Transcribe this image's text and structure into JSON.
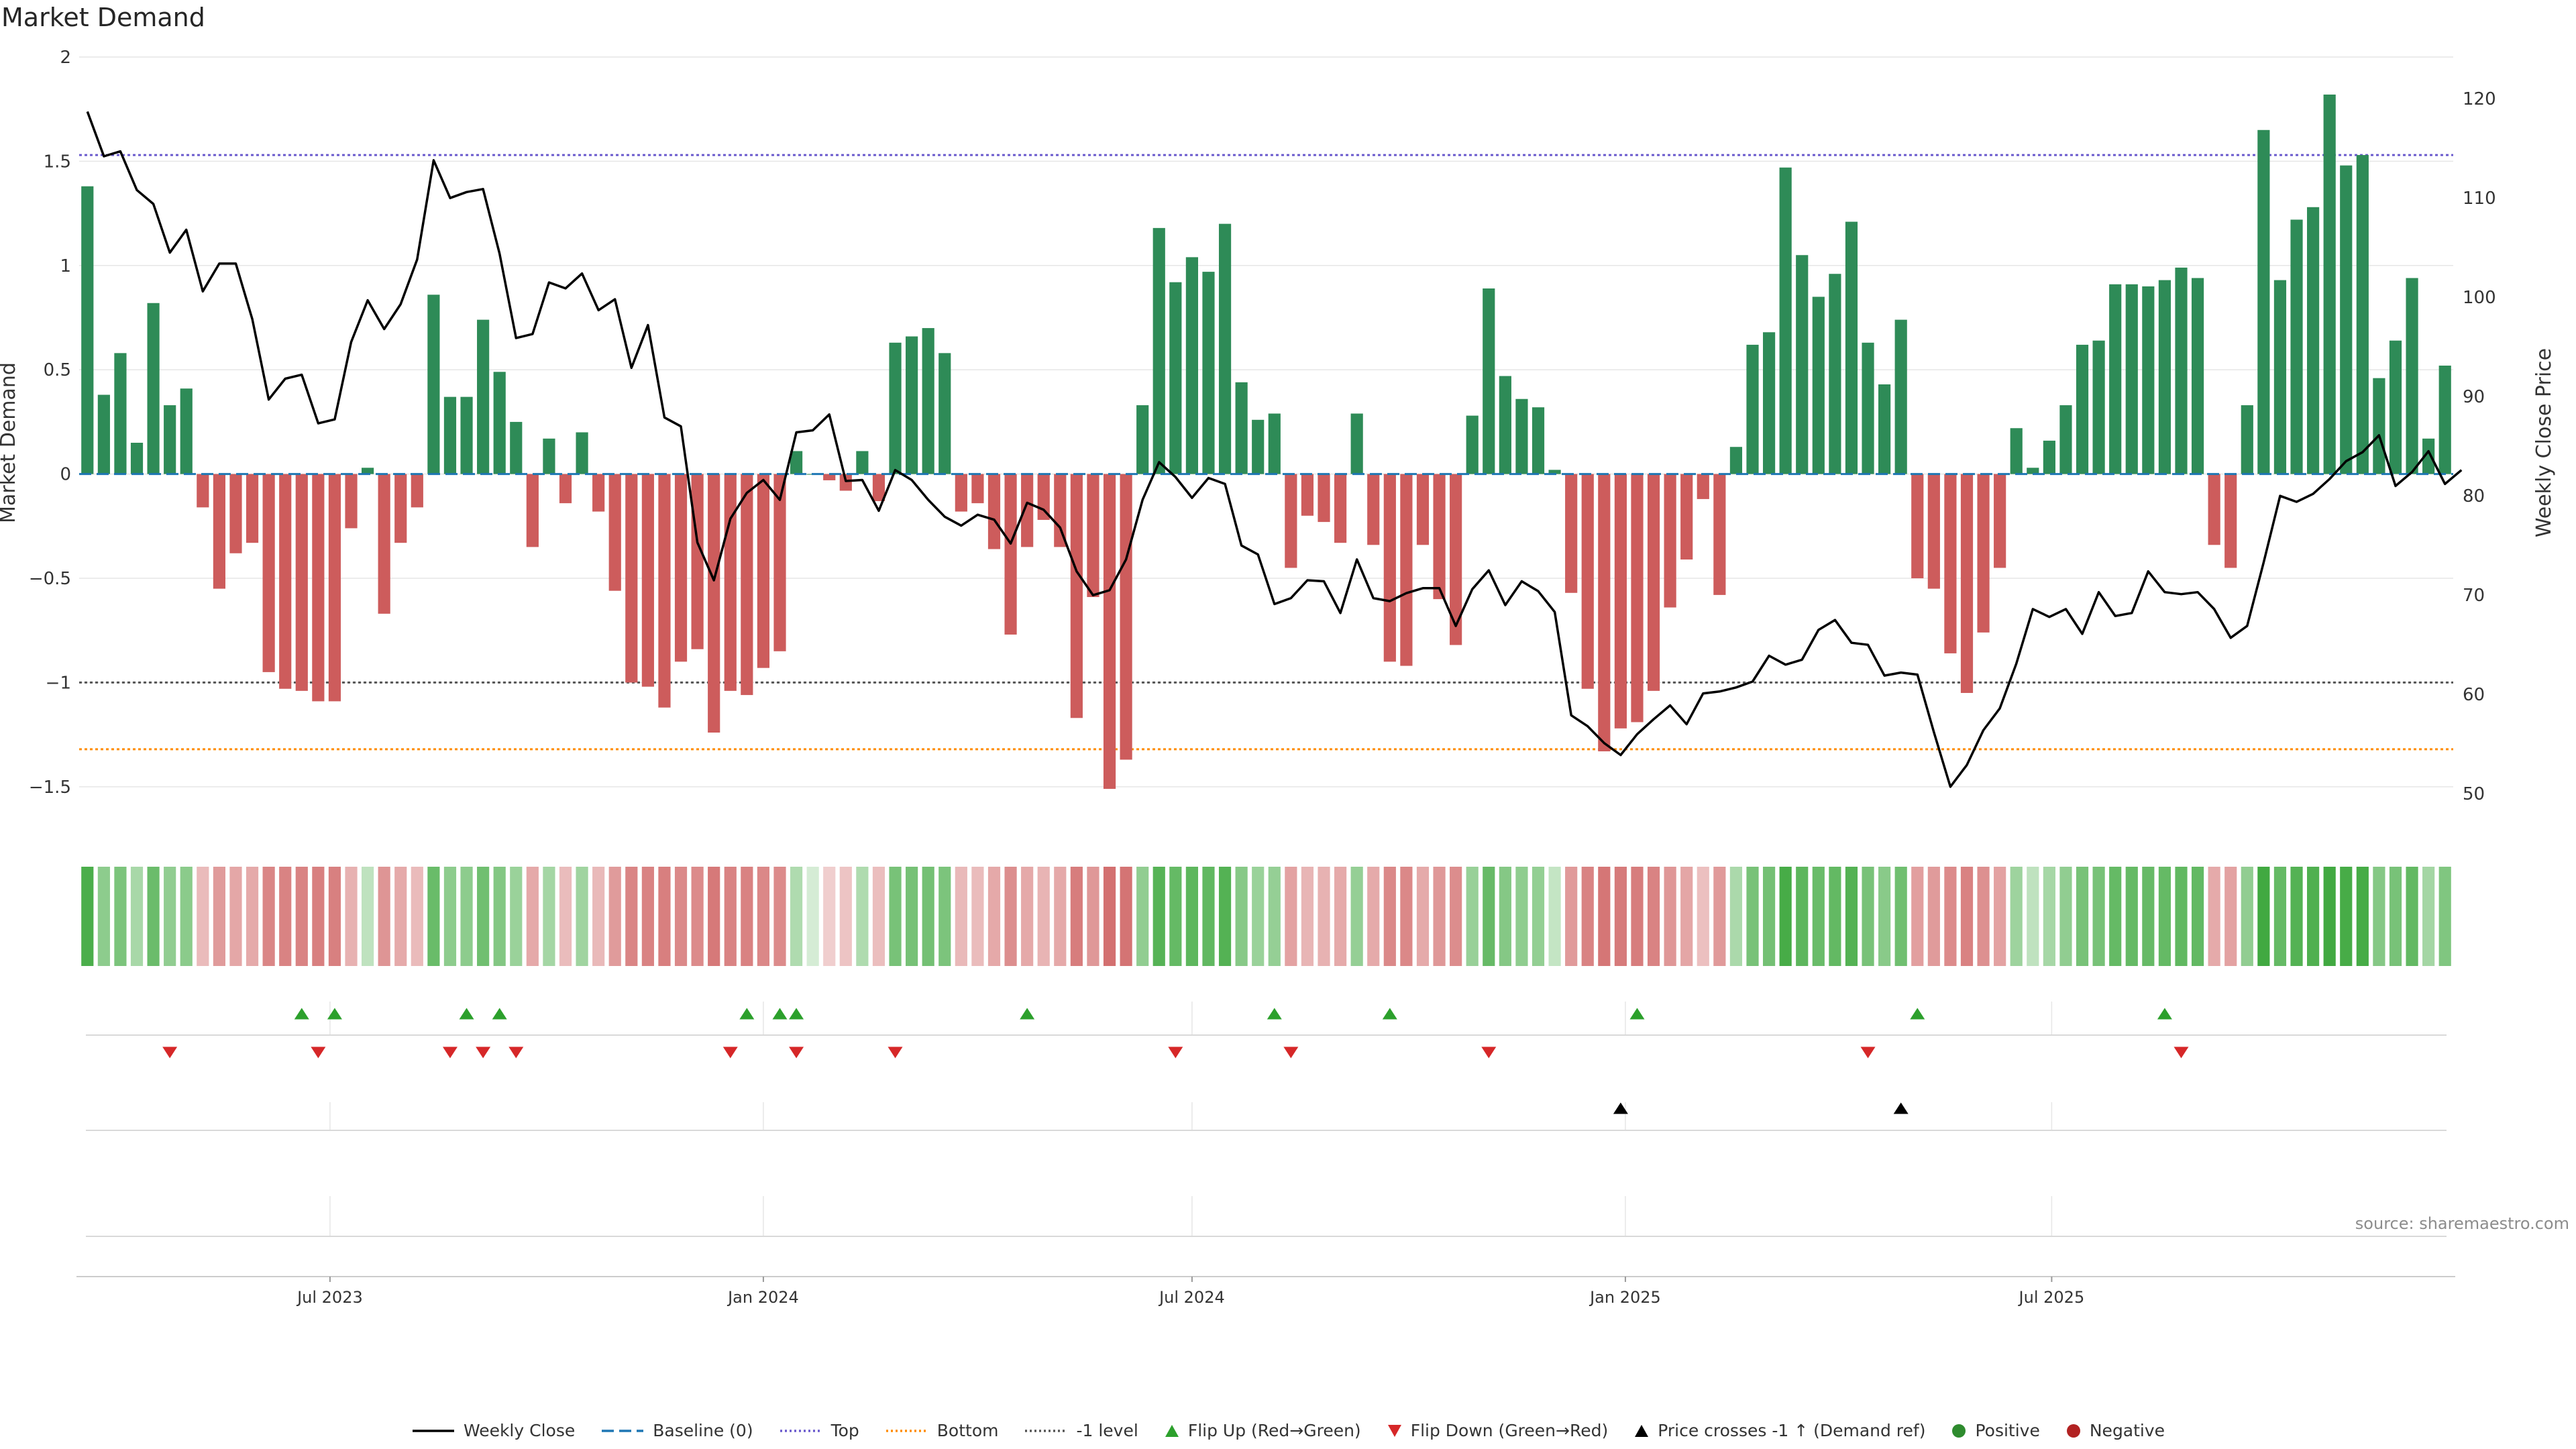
{
  "title": "Market Demand",
  "source": "source: sharemaestro.com",
  "colors": {
    "positive_bar": "#2e8b57",
    "negative_bar": "#cd5c5c",
    "price_line": "#000000",
    "baseline": "#1f77b4",
    "top_line": "#6a5acd",
    "bottom_line": "#ff8c00",
    "minus1_line": "#555555",
    "flip_up": "#2ca02c",
    "flip_down": "#d62728",
    "cross": "#000000",
    "grid": "#e6e6e6"
  },
  "chart_data": {
    "type": "bar+line",
    "title": "Market Demand",
    "xlabel": "",
    "ylabel": "Market Demand",
    "y2label": "Weekly Close Price",
    "ylim": [
      -1.7,
      2.0
    ],
    "y2lim": [
      46.5,
      124.2
    ],
    "yticks": [
      2,
      1.5,
      1,
      0.5,
      0,
      -0.5,
      -1,
      -1.5
    ],
    "ytick_labels": [
      "2",
      "1.5",
      "1",
      "0.5",
      "0",
      "−0.5",
      "−1",
      "−1.5"
    ],
    "y2ticks": [
      120,
      110,
      100,
      90,
      80,
      70,
      60,
      50
    ],
    "x_start": "2023-03-20",
    "x_step_days": 7,
    "xtick_labels": [
      {
        "label": "Jul 2023",
        "date": "2023-07-01"
      },
      {
        "label": "Jan 2024",
        "date": "2024-01-01"
      },
      {
        "label": "Jul 2024",
        "date": "2024-07-01"
      },
      {
        "label": "Jan 2025",
        "date": "2025-01-01"
      },
      {
        "label": "Jul 2025",
        "date": "2025-07-01"
      }
    ],
    "reference_lines": {
      "baseline": 0,
      "top": 1.53,
      "bottom": -1.32,
      "minus_one": -1.0
    },
    "demand": [
      1.38,
      0.38,
      0.58,
      0.15,
      0.82,
      0.33,
      0.41,
      -0.16,
      -0.55,
      -0.38,
      -0.33,
      -0.95,
      -1.03,
      -1.04,
      -1.09,
      -1.09,
      -0.26,
      0.03,
      -0.67,
      -0.33,
      -0.16,
      0.86,
      0.37,
      0.37,
      0.74,
      0.49,
      0.25,
      -0.35,
      0.17,
      -0.14,
      0.2,
      -0.18,
      -0.56,
      -1.0,
      -1.02,
      -1.12,
      -0.9,
      -0.84,
      -1.24,
      -1.04,
      -1.06,
      -0.93,
      -0.85,
      0.11,
      0.0,
      -0.03,
      -0.08,
      0.11,
      -0.13,
      0.63,
      0.66,
      0.7,
      0.58,
      -0.18,
      -0.14,
      -0.36,
      -0.77,
      -0.35,
      -0.22,
      -0.35,
      -1.17,
      -0.59,
      -1.51,
      -1.37,
      0.33,
      1.18,
      0.92,
      1.04,
      0.97,
      1.2,
      0.44,
      0.26,
      0.29,
      -0.45,
      -0.2,
      -0.23,
      -0.33,
      0.29,
      -0.34,
      -0.9,
      -0.92,
      -0.34,
      -0.6,
      -0.82,
      0.28,
      0.89,
      0.47,
      0.36,
      0.32,
      0.02,
      -0.57,
      -1.03,
      -1.33,
      -1.22,
      -1.19,
      -1.04,
      -0.64,
      -0.41,
      -0.12,
      -0.58,
      0.13,
      0.62,
      0.68,
      1.47,
      1.05,
      0.85,
      0.96,
      1.21,
      0.63,
      0.43,
      0.74,
      -0.5,
      -0.55,
      -0.86,
      -1.05,
      -0.76,
      -0.45,
      0.22,
      0.03,
      0.16,
      0.33,
      0.62,
      0.64,
      0.91,
      0.91,
      0.9,
      0.93,
      0.99,
      0.94,
      -0.34,
      -0.45,
      0.33,
      1.65,
      0.93,
      1.22,
      1.28,
      1.82,
      1.48,
      1.53,
      0.46,
      0.64,
      0.94,
      0.17,
      0.52
    ],
    "weekly_close": [
      118.7,
      114.2,
      114.7,
      110.8,
      109.4,
      104.5,
      106.8,
      100.6,
      103.4,
      103.4,
      97.8,
      89.7,
      91.8,
      92.2,
      87.3,
      87.7,
      95.5,
      99.7,
      96.8,
      99.3,
      103.8,
      113.8,
      110.0,
      110.6,
      110.9,
      104.4,
      95.9,
      96.3,
      101.5,
      100.9,
      102.4,
      98.7,
      99.8,
      92.9,
      97.2,
      87.9,
      87.0,
      75.3,
      71.5,
      77.7,
      80.3,
      81.6,
      79.6,
      86.4,
      86.6,
      88.2,
      81.5,
      81.6,
      78.5,
      82.6,
      81.6,
      79.6,
      77.9,
      77.0,
      78.1,
      77.6,
      75.2,
      79.3,
      78.6,
      76.8,
      72.4,
      70.0,
      70.5,
      73.6,
      79.6,
      83.4,
      81.9,
      79.8,
      81.8,
      81.2,
      75.0,
      74.1,
      69.1,
      69.7,
      71.5,
      71.4,
      68.2,
      73.6,
      69.7,
      69.4,
      70.2,
      70.7,
      70.7,
      66.9,
      70.6,
      72.5,
      69.0,
      71.4,
      70.4,
      68.3,
      57.9,
      56.8,
      55.1,
      53.9,
      56.0,
      57.5,
      58.9,
      57.0,
      60.1,
      60.3,
      60.7,
      61.3,
      63.9,
      63.0,
      63.5,
      66.5,
      67.5,
      65.2,
      65.0,
      61.9,
      62.2,
      62.0,
      56.2,
      50.7,
      52.9,
      56.4,
      58.6,
      63.1,
      68.6,
      67.8,
      68.6,
      66.1,
      70.3,
      67.9,
      68.2,
      72.4,
      70.3,
      70.1,
      70.3,
      68.6,
      65.7,
      66.9,
      73.3,
      80.0,
      79.4,
      80.2,
      81.7,
      83.5,
      84.4,
      86.1,
      81.0,
      82.4,
      84.5,
      81.2,
      82.6
    ],
    "flip_up_dates": [
      "2023-06-19",
      "2023-07-03",
      "2023-08-28",
      "2023-09-11",
      "2023-12-25",
      "2024-01-08",
      "2024-01-15",
      "2024-04-22",
      "2024-08-05",
      "2024-09-23",
      "2025-01-06",
      "2025-05-05",
      "2025-08-18"
    ],
    "flip_down_dates": [
      "2023-04-24",
      "2023-06-26",
      "2023-08-21",
      "2023-09-04",
      "2023-09-18",
      "2023-12-18",
      "2024-01-15",
      "2024-02-26",
      "2024-06-24",
      "2024-08-12",
      "2024-11-04",
      "2025-04-14",
      "2025-08-25"
    ],
    "cross_dates": [
      "2024-12-30",
      "2025-04-28"
    ]
  },
  "legend": {
    "items": [
      {
        "label": "Weekly Close",
        "kind": "line",
        "dash": "",
        "color": "#000000"
      },
      {
        "label": "Baseline (0)",
        "kind": "line",
        "dash": "18,8",
        "color": "#1f77b4"
      },
      {
        "label": "Top",
        "kind": "line",
        "dash": "3,4",
        "color": "#6a5acd"
      },
      {
        "label": "Bottom",
        "kind": "line",
        "dash": "3,4",
        "color": "#ff8c00"
      },
      {
        "label": "-1 level",
        "kind": "line",
        "dash": "3,4",
        "color": "#555555"
      },
      {
        "label": "Flip Up (Red→Green)",
        "kind": "tri-up",
        "color": "#2ca02c"
      },
      {
        "label": "Flip Down (Green→Red)",
        "kind": "tri-down",
        "color": "#d62728"
      },
      {
        "label": "Price crosses -1 ↑ (Demand ref)",
        "kind": "tri-up",
        "color": "#000000"
      },
      {
        "label": "Positive",
        "kind": "dot",
        "color": "#2e8b2e"
      },
      {
        "label": "Negative",
        "kind": "dot",
        "color": "#b22222"
      }
    ]
  }
}
